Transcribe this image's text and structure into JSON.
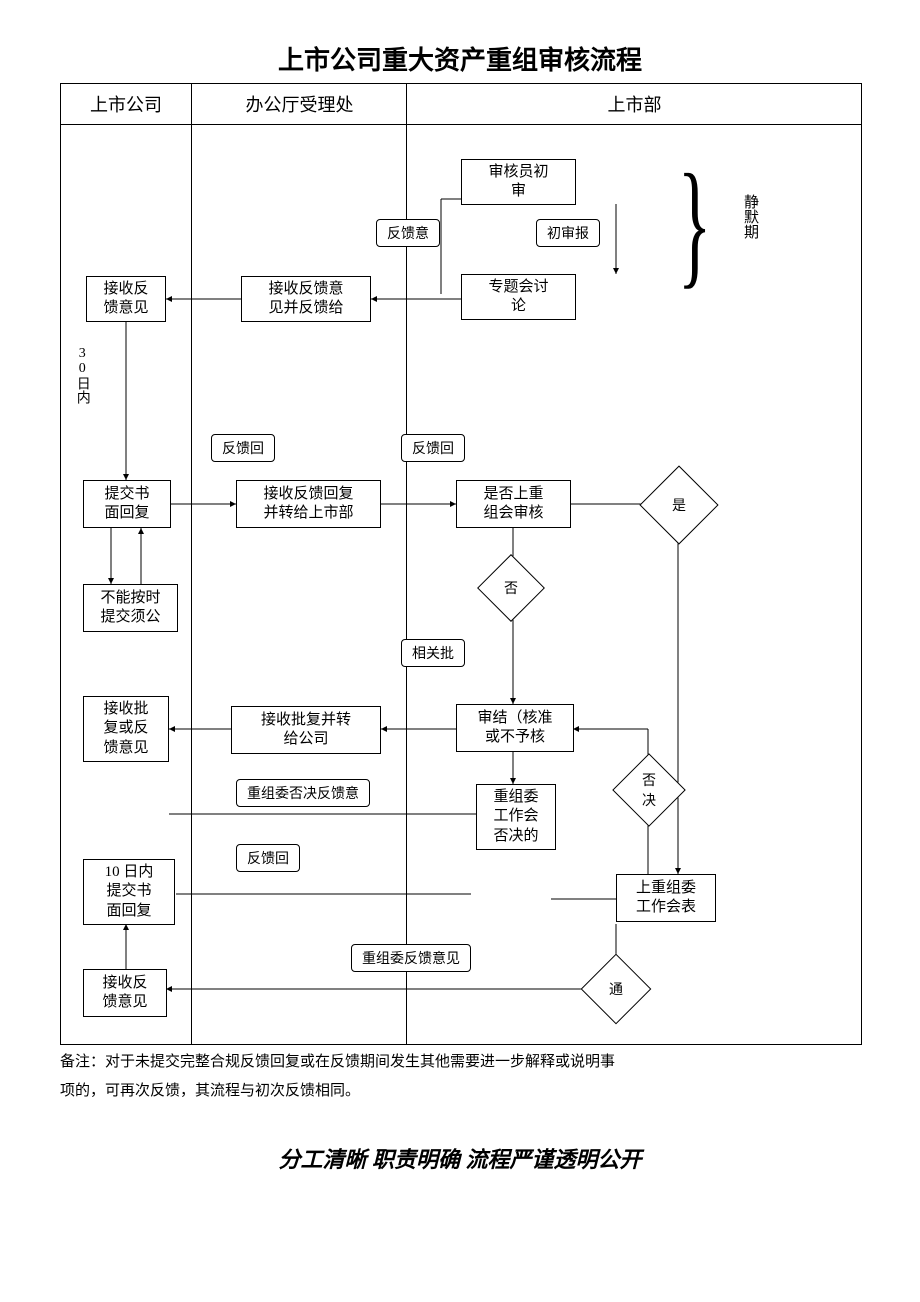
{
  "title": "上市公司重大资产重组审核流程",
  "lanes": {
    "a": "上市公司",
    "b": "办公厅受理处",
    "c": "上市部"
  },
  "nodes": {
    "n1": "审核员初\n审",
    "n2": "专题会讨\n论",
    "n3": "接收反馈意\n见并反馈给",
    "n4": "接收反\n馈意见",
    "n5": "提交书\n面回复",
    "n6": "接收反馈回复\n并转给上市部",
    "n7": "是否上重\n组会审核",
    "n8": "不能按时\n提交须公",
    "n9": "接收批复并转\n给公司",
    "n10": "审结（核准\n或不予核",
    "n11": "接收批\n复或反\n馈意见",
    "n12": "重组委\n工作会\n否决的",
    "n13": "上重组委\n工作会表",
    "n14": "10 日内\n提交书\n面回复",
    "n15": "接收反\n馈意见"
  },
  "flags": {
    "f1": "反馈意",
    "f2": "初审报",
    "f3": "反馈回",
    "f4": "反馈回",
    "f5": "相关批",
    "f6": "重组委否决反馈意",
    "f7": "反馈回",
    "f8": "重组委反馈意见"
  },
  "diamonds": {
    "d_yes": "是",
    "d_no": "否",
    "d_reject": "否\n决",
    "d_pass": "通"
  },
  "side": {
    "silent": "静默期",
    "thirty": "30日内"
  },
  "note1": "备注：对于未提交完整合规反馈回复或在反馈期间发生其他需要进一步解释或说明事",
  "note2": "项的，可再次反馈，其流程与初次反馈相同。",
  "slogan": "分工清晰  职责明确  流程严谨透明公开",
  "style": {
    "lane_widths": [
      130,
      215,
      455
    ],
    "border_color": "#000000",
    "background": "#ffffff",
    "font_family": "SimSun",
    "title_fontsize": 26,
    "body_fontsize": 15
  }
}
